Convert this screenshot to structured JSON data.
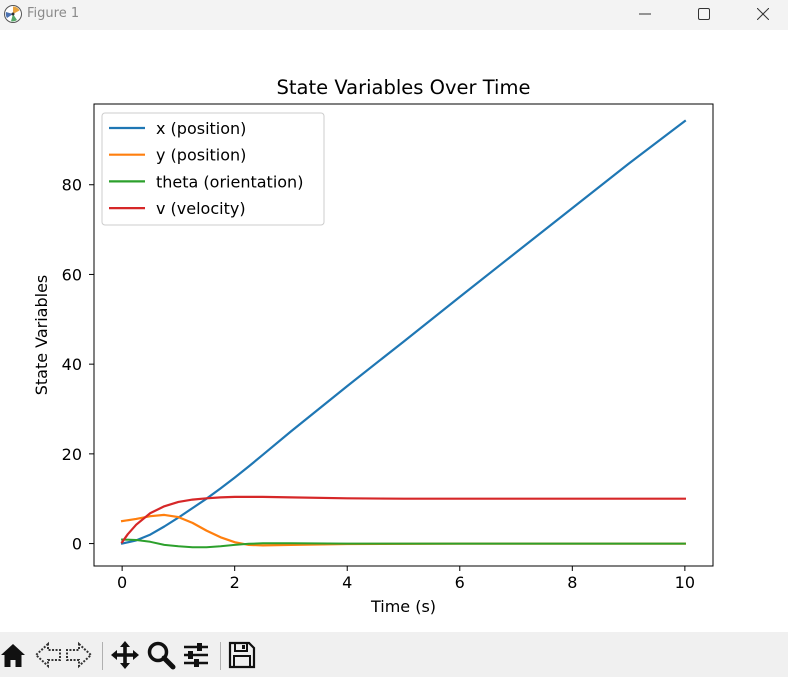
{
  "window": {
    "title": "Figure 1"
  },
  "chart_data": {
    "type": "line",
    "title": "State Variables Over Time",
    "xlabel": "Time (s)",
    "ylabel": "State Variables",
    "xlim": [
      -0.5,
      10.5
    ],
    "ylim": [
      -5,
      98
    ],
    "xticks": [
      0,
      2,
      4,
      6,
      8,
      10
    ],
    "yticks": [
      0,
      20,
      40,
      60,
      80
    ],
    "grid": false,
    "legend_position": "upper left",
    "series": [
      {
        "name": "x (position)",
        "color": "#1f77b4",
        "x": [
          0,
          0.25,
          0.5,
          0.75,
          1.0,
          1.25,
          1.5,
          1.75,
          2.0,
          2.25,
          2.5,
          3,
          4,
          5,
          6,
          7,
          8,
          9,
          10
        ],
        "y": [
          0,
          0.7,
          2.0,
          3.8,
          5.8,
          7.9,
          10.0,
          12.3,
          14.7,
          17.2,
          19.8,
          25.0,
          35.1,
          45.0,
          55.0,
          64.9,
          74.8,
          84.7,
          94.2
        ]
      },
      {
        "name": "y (position)",
        "color": "#ff7f0e",
        "x": [
          0,
          0.25,
          0.5,
          0.75,
          1.0,
          1.25,
          1.5,
          1.75,
          2.0,
          2.25,
          2.5,
          3,
          4,
          6,
          8,
          10
        ],
        "y": [
          5.0,
          5.5,
          6.1,
          6.4,
          5.9,
          4.6,
          2.9,
          1.4,
          0.3,
          -0.3,
          -0.4,
          -0.3,
          -0.1,
          0,
          0,
          0
        ]
      },
      {
        "name": "theta (orientation)",
        "color": "#2ca02c",
        "x": [
          0,
          0.25,
          0.5,
          0.75,
          1.0,
          1.25,
          1.5,
          1.75,
          2.0,
          2.25,
          2.5,
          3,
          4,
          6,
          8,
          10
        ],
        "y": [
          0.9,
          0.8,
          0.4,
          -0.3,
          -0.6,
          -0.8,
          -0.8,
          -0.6,
          -0.3,
          -0.05,
          0.05,
          0.05,
          0,
          0,
          0,
          0
        ],
        "line_width": 2
      },
      {
        "name": "v (velocity)",
        "color": "#d62728",
        "x": [
          0,
          0.1,
          0.25,
          0.5,
          0.75,
          1.0,
          1.25,
          1.5,
          1.75,
          2.0,
          2.25,
          2.5,
          3,
          4,
          5,
          6,
          7,
          8,
          9,
          10
        ],
        "y": [
          0.3,
          2.1,
          4.2,
          6.8,
          8.3,
          9.3,
          9.8,
          10.1,
          10.3,
          10.4,
          10.4,
          10.4,
          10.3,
          10.1,
          10.0,
          10.0,
          10.0,
          10.0,
          10.0,
          10.0
        ]
      }
    ]
  },
  "toolbar": {
    "icons": [
      "home-icon",
      "back-icon",
      "forward-icon",
      "pan-icon",
      "zoom-icon",
      "subplots-icon",
      "save-icon"
    ]
  }
}
